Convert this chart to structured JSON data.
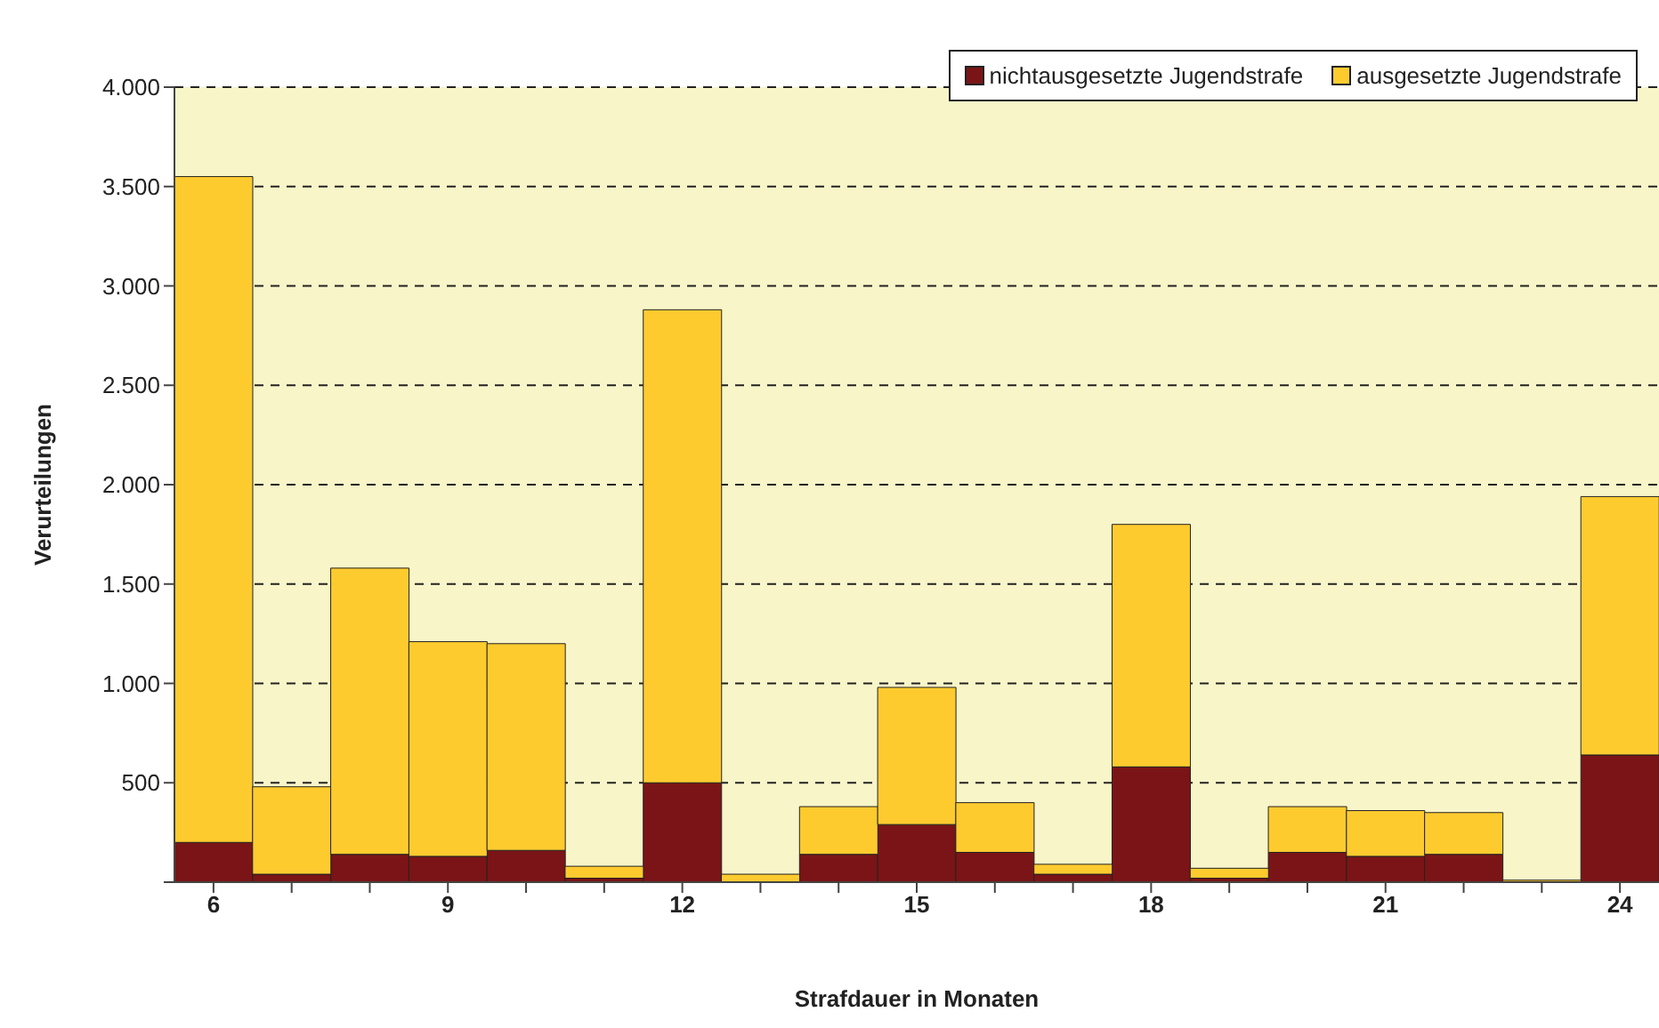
{
  "chart_data": {
    "type": "bar",
    "stacked": true,
    "xlabel": "Strafdauer in Monaten",
    "ylabel": "Verurteilungen",
    "categories": [
      "6",
      null,
      null,
      "9",
      null,
      null,
      "12",
      null,
      null,
      "15",
      null,
      null,
      "18",
      null,
      null,
      "21",
      null,
      null,
      "24"
    ],
    "series": [
      {
        "name": "nichtausgesetzte Jugendstrafe",
        "color": "#7b1416",
        "values": [
          200,
          40,
          140,
          130,
          160,
          20,
          500,
          null,
          140,
          290,
          150,
          40,
          580,
          20,
          150,
          130,
          140,
          null,
          640
        ]
      },
      {
        "name": "ausgesetzte Jugendstrafe",
        "color": "#fecb2f",
        "values": [
          3350,
          440,
          1440,
          1080,
          1040,
          60,
          2380,
          40,
          240,
          690,
          250,
          50,
          1220,
          50,
          230,
          230,
          210,
          10,
          1300
        ]
      }
    ],
    "ylim": [
      0,
      4000
    ],
    "yticks": [
      {
        "value": 0,
        "label": null
      },
      500,
      {
        "value": 1000,
        "label": "1.000"
      },
      {
        "value": 1500,
        "label": "1.500"
      },
      {
        "value": 2000,
        "label": "2.000"
      },
      {
        "value": 2500,
        "label": "2.500"
      },
      {
        "value": 3000,
        "label": "3.000"
      },
      {
        "value": 3500,
        "label": "3.500"
      },
      {
        "value": 4000,
        "label": "4.000"
      }
    ],
    "grid": "y",
    "legend": "top right"
  }
}
